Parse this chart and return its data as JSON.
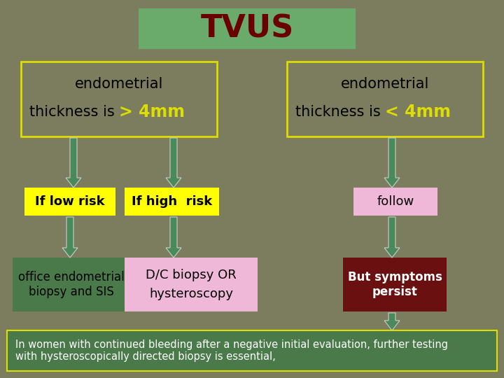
{
  "background_color": "#7c7c5e",
  "title": "TVUS",
  "title_bg": "#6aaa6a",
  "title_color": "#6b0000",
  "title_fontsize": 32,
  "box_border_color": "#dddd00",
  "left_box_text1_color": "#000000",
  "left_box_highlight_color": "#dddd00",
  "right_box_text1_color": "#000000",
  "right_box_highlight_color": "#dddd00",
  "low_risk_text": "If low risk",
  "low_risk_bg": "#ffff00",
  "low_risk_text_color": "#000000",
  "high_risk_text": "If high  risk",
  "high_risk_bg": "#ffff00",
  "high_risk_text_color": "#000000",
  "follow_text": "follow",
  "follow_bg": "#f0b8d8",
  "follow_text_color": "#000000",
  "office_text": "office endometrial\nbiopsy and SIS",
  "office_bg": "#4a7a4a",
  "office_text_color": "#000000",
  "biopsy_prefix": "D/C ",
  "biopsy_main": "biopsy OR\nhysteroscopy",
  "biopsy_bg": "#f0b8d8",
  "biopsy_text_color": "#000000",
  "symptoms_text": "But symptoms\npersist",
  "symptoms_bg": "#6b1010",
  "symptoms_text_color": "#ffffff",
  "arrow_color": "#4a8a5a",
  "arrow_edge": "#cccccc",
  "bottom_text": "In women with continued bleeding after a negative initial evaluation, further testing\nwith hysteroscopically directed biopsy is essential,",
  "bottom_bg": "#4a7a4a",
  "bottom_text_color": "#ffffff",
  "bottom_border": "#dddd00"
}
